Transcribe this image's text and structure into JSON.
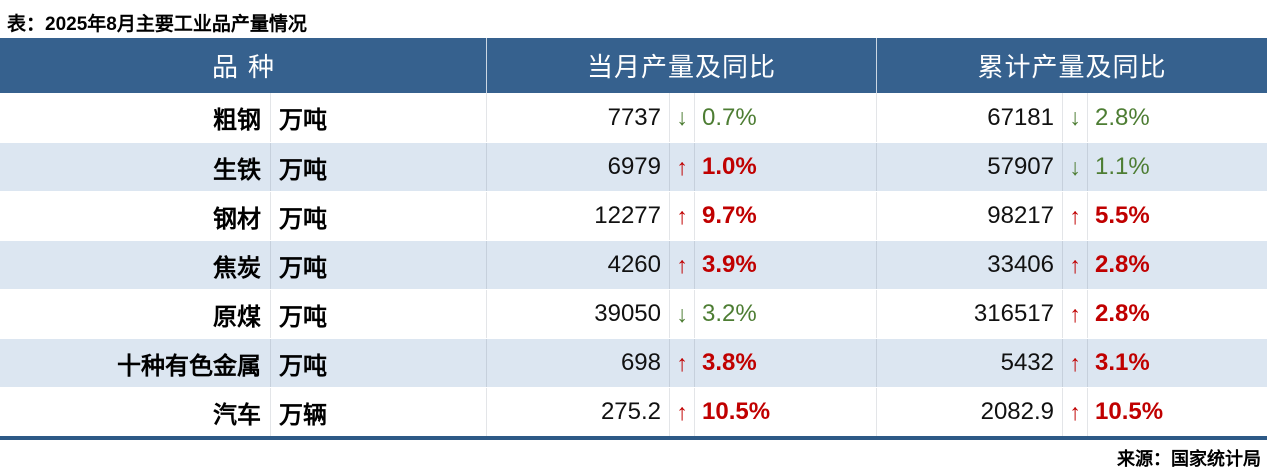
{
  "title": "表：2025年8月主要工业品产量情况",
  "source": "来源：国家统计局",
  "columns": [
    "品种",
    "当月产量及同比",
    "累计产量及同比"
  ],
  "icons": {
    "up": "↑",
    "down": "↓"
  },
  "colors": {
    "header_bg": "#36618e",
    "row_stripe": "#dce6f1",
    "increase_red": "#c00000",
    "decrease_green": "#4d7d33",
    "bottom_border": "#2d5986"
  },
  "rows": [
    {
      "name": "粗钢",
      "unit": "万吨",
      "monthly": {
        "value": "7737",
        "dir": "down",
        "pct": "0.7%",
        "tone": "green"
      },
      "cumulative": {
        "value": "67181",
        "dir": "down",
        "pct": "2.8%",
        "tone": "green"
      }
    },
    {
      "name": "生铁",
      "unit": "万吨",
      "monthly": {
        "value": "6979",
        "dir": "up",
        "pct": "1.0%",
        "tone": "red"
      },
      "cumulative": {
        "value": "57907",
        "dir": "down",
        "pct": "1.1%",
        "tone": "green"
      }
    },
    {
      "name": "钢材",
      "unit": "万吨",
      "monthly": {
        "value": "12277",
        "dir": "up",
        "pct": "9.7%",
        "tone": "red"
      },
      "cumulative": {
        "value": "98217",
        "dir": "up",
        "pct": "5.5%",
        "tone": "red"
      }
    },
    {
      "name": "焦炭",
      "unit": "万吨",
      "monthly": {
        "value": "4260",
        "dir": "up",
        "pct": "3.9%",
        "tone": "red"
      },
      "cumulative": {
        "value": "33406",
        "dir": "up",
        "pct": "2.8%",
        "tone": "red"
      }
    },
    {
      "name": "原煤",
      "unit": "万吨",
      "monthly": {
        "value": "39050",
        "dir": "down",
        "pct": "3.2%",
        "tone": "green"
      },
      "cumulative": {
        "value": "316517",
        "dir": "up",
        "pct": "2.8%",
        "tone": "red"
      }
    },
    {
      "name": "十种有色金属",
      "unit": "万吨",
      "monthly": {
        "value": "698",
        "dir": "up",
        "pct": "3.8%",
        "tone": "red"
      },
      "cumulative": {
        "value": "5432",
        "dir": "up",
        "pct": "3.1%",
        "tone": "red"
      }
    },
    {
      "name": "汽车",
      "unit": "万辆",
      "monthly": {
        "value": "275.2",
        "dir": "up",
        "pct": "10.5%",
        "tone": "red"
      },
      "cumulative": {
        "value": "2082.9",
        "dir": "up",
        "pct": "10.5%",
        "tone": "red"
      }
    }
  ],
  "chart_data": {
    "type": "table",
    "title": "表：2025年8月主要工业品产量情况",
    "source": "来源：国家统计局",
    "columns": [
      "品种",
      "当月产量及同比",
      "累计产量及同比"
    ],
    "records": [
      {
        "品种": "粗钢",
        "单位": "万吨",
        "当月产量": 7737,
        "当月同比": -0.7,
        "累计产量": 67181,
        "累计同比": -2.8
      },
      {
        "品种": "生铁",
        "单位": "万吨",
        "当月产量": 6979,
        "当月同比": 1.0,
        "累计产量": 57907,
        "累计同比": -1.1
      },
      {
        "品种": "钢材",
        "单位": "万吨",
        "当月产量": 12277,
        "当月同比": 9.7,
        "累计产量": 98217,
        "累计同比": 5.5
      },
      {
        "品种": "焦炭",
        "单位": "万吨",
        "当月产量": 4260,
        "当月同比": 3.9,
        "累计产量": 33406,
        "累计同比": 2.8
      },
      {
        "品种": "原煤",
        "单位": "万吨",
        "当月产量": 39050,
        "当月同比": -3.2,
        "累计产量": 316517,
        "累计同比": 2.8
      },
      {
        "品种": "十种有色金属",
        "单位": "万吨",
        "当月产量": 698,
        "当月同比": 3.8,
        "累计产量": 5432,
        "累计同比": 3.1
      },
      {
        "品种": "汽车",
        "单位": "万辆",
        "当月产量": 275.2,
        "当月同比": 10.5,
        "累计产量": 2082.9,
        "累计同比": 10.5
      }
    ]
  }
}
